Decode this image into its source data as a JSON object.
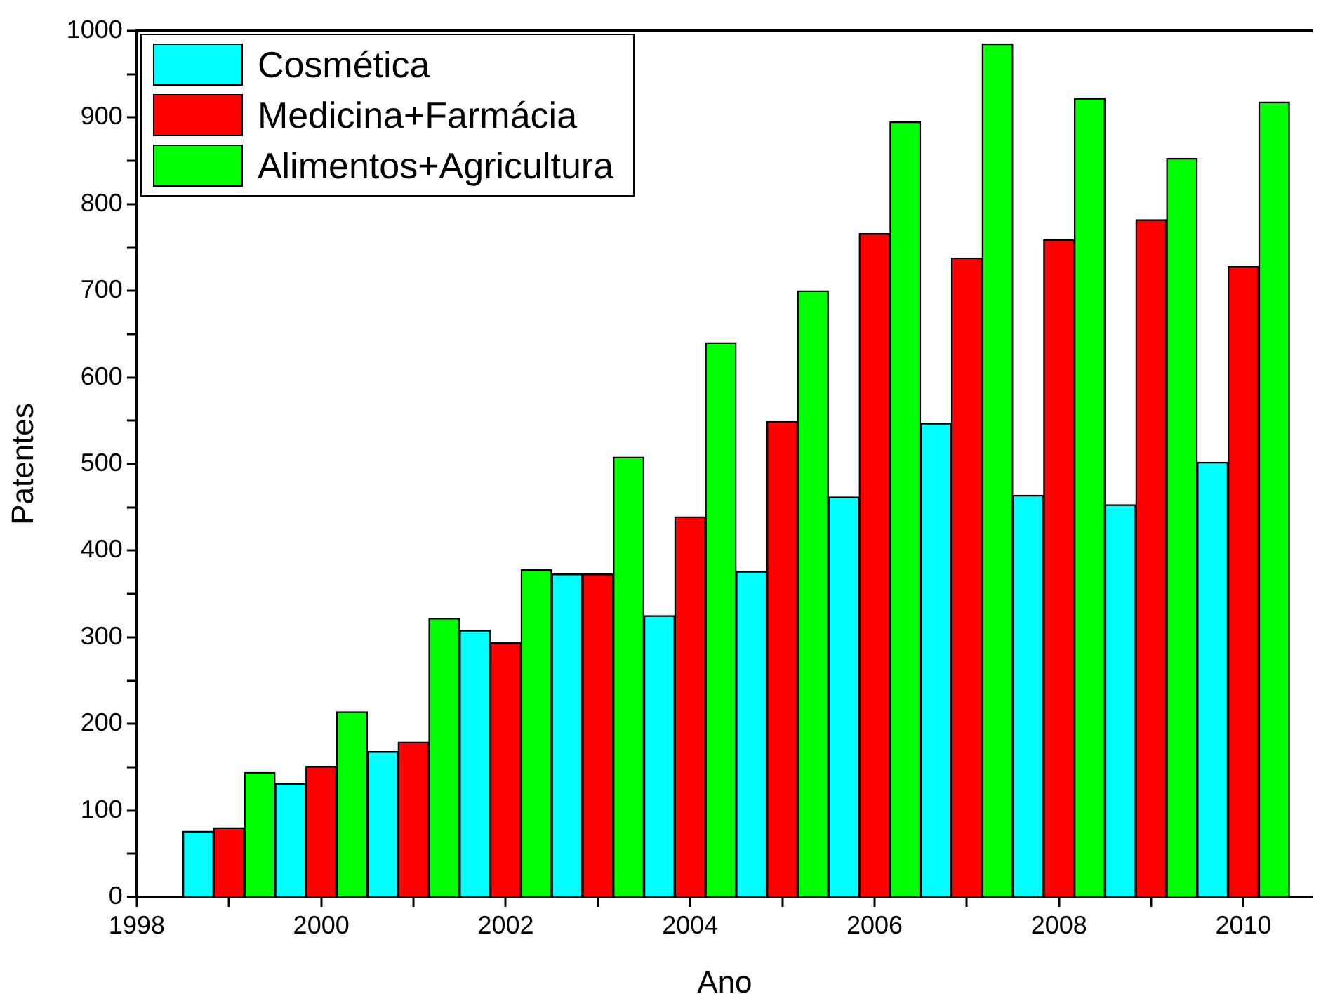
{
  "chart_data": {
    "type": "bar",
    "xlabel": "Ano",
    "ylabel": "Patentes",
    "x": [
      1999,
      2000,
      2001,
      2002,
      2003,
      2004,
      2005,
      2006,
      2007,
      2008,
      2009,
      2010
    ],
    "series": [
      {
        "name": "Cosmética",
        "color": "#00ffff",
        "values": [
          76,
          131,
          168,
          308,
          373,
          325,
          376,
          462,
          547,
          464,
          453,
          502
        ]
      },
      {
        "name": "Medicina+Farmácia",
        "color": "#ff0000",
        "values": [
          80,
          151,
          179,
          294,
          373,
          439,
          549,
          766,
          738,
          759,
          782,
          728
        ]
      },
      {
        "name": "Alimentos+Agricultura",
        "color": "#00ff00",
        "values": [
          144,
          214,
          322,
          378,
          508,
          640,
          700,
          895,
          985,
          922,
          853,
          918
        ]
      }
    ],
    "xlim": [
      1998,
      2010.75
    ],
    "xticks": [
      1998,
      {
        "value": 1999,
        "label": null
      },
      2000,
      {
        "value": 2001,
        "label": null
      },
      2002,
      {
        "value": 2003,
        "label": null
      },
      2004,
      {
        "value": 2005,
        "label": null
      },
      2006,
      {
        "value": 2007,
        "label": null
      },
      2008,
      {
        "value": 2009,
        "label": null
      },
      2010
    ],
    "ylim": [
      0,
      1000
    ],
    "yticks": [
      0,
      {
        "value": 50,
        "label": null
      },
      100,
      {
        "value": 150,
        "label": null
      },
      200,
      {
        "value": 250,
        "label": null
      },
      300,
      {
        "value": 350,
        "label": null
      },
      400,
      {
        "value": 450,
        "label": null
      },
      500,
      {
        "value": 550,
        "label": null
      },
      600,
      {
        "value": 650,
        "label": null
      },
      700,
      {
        "value": 750,
        "label": null
      },
      800,
      {
        "value": 850,
        "label": null
      },
      900,
      {
        "value": 950,
        "label": null
      },
      1000
    ],
    "grid": false,
    "legend": "top left"
  }
}
